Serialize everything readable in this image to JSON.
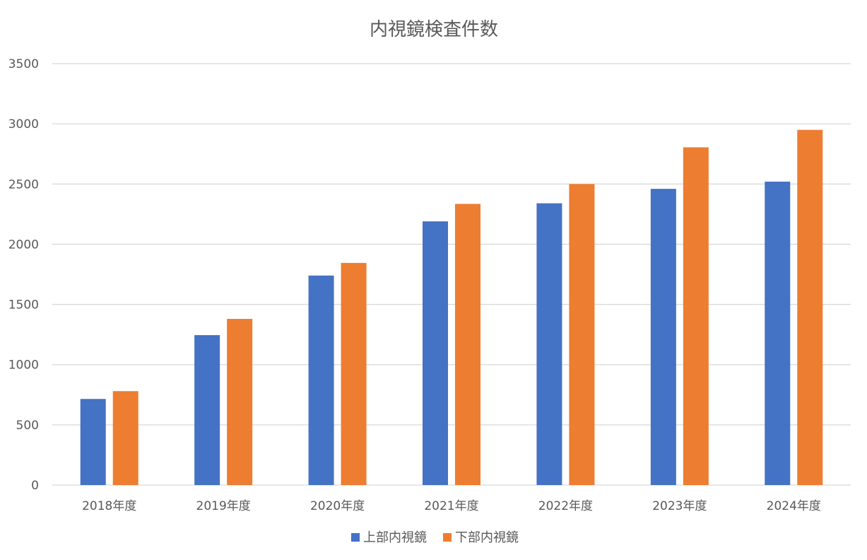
{
  "chart_data": {
    "type": "bar",
    "title": "内視鏡検査件数",
    "xlabel": "",
    "ylabel": "",
    "categories": [
      "2018年度",
      "2019年度",
      "2020年度",
      "2021年度",
      "2022年度",
      "2023年度",
      "2024年度"
    ],
    "series": [
      {
        "name": "上部内視鏡",
        "color": "#4472C4",
        "values": [
          715,
          1245,
          1740,
          2190,
          2340,
          2460,
          2520
        ]
      },
      {
        "name": "下部内視鏡",
        "color": "#ED7D31",
        "values": [
          780,
          1380,
          1845,
          2335,
          2500,
          2805,
          2950
        ]
      }
    ],
    "ylim": [
      0,
      3500
    ],
    "yticks": [
      0,
      500,
      1000,
      1500,
      2000,
      2500,
      3000,
      3500
    ],
    "grid": true,
    "legend_position": "bottom"
  }
}
